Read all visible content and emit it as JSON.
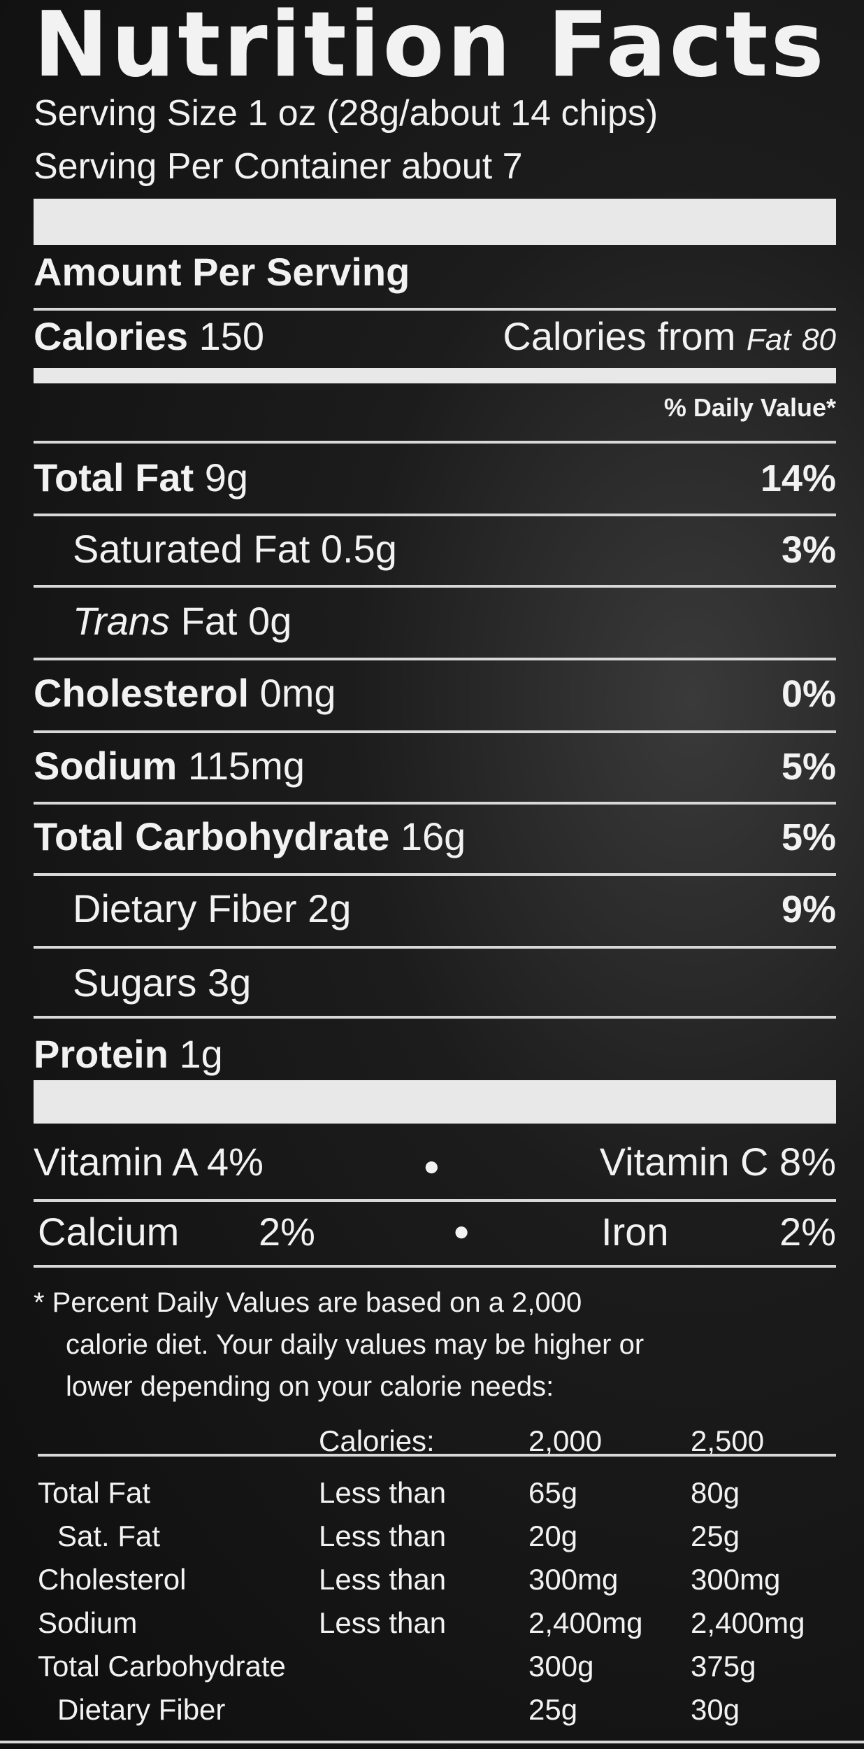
{
  "title": "Nutrition Facts",
  "serving_size": "Serving Size 1 oz (28g/about 14 chips)",
  "servings_per_container": "Serving Per Container about 7",
  "amount_per_serving": "Amount Per Serving",
  "calories": {
    "label": "Calories",
    "value": "150",
    "from_fat_label": "Calories from",
    "from_fat_label2": "Fat",
    "from_fat_value": "80"
  },
  "daily_value_header": "% Daily Value*",
  "nutrients": [
    {
      "label": "Total Fat",
      "amount": "9g",
      "dv": "14%",
      "bold": true
    },
    {
      "label": "Saturated Fat",
      "amount": "0.5g",
      "dv": "3%",
      "bold": false
    },
    {
      "label": "Trans",
      "label2": "Fat",
      "amount": "0g",
      "dv": "",
      "bold": false
    },
    {
      "label": "Cholesterol",
      "amount": "0mg",
      "dv": "0%",
      "bold": true
    },
    {
      "label": "Sodium",
      "amount": "115mg",
      "dv": "5%",
      "bold": true
    },
    {
      "label": "Total Carbohydrate",
      "amount": "16g",
      "dv": "5%",
      "bold": true
    },
    {
      "label": "Dietary Fiber",
      "amount": "2g",
      "dv": "9%",
      "bold": false
    },
    {
      "label": "Sugars",
      "amount": "3g",
      "dv": "",
      "bold": false
    },
    {
      "label": "Protein",
      "amount": "1g",
      "dv": "",
      "bold": true
    }
  ],
  "vitamins": [
    {
      "left": "Vitamin A 4%",
      "right": "Vitamin C 8%"
    },
    {
      "left_label": "Calcium",
      "left_value": "2%",
      "right_label": "Iron",
      "right_value": "2%"
    }
  ],
  "footnote": [
    "* Percent Daily Values are based on a 2,000",
    "calorie diet. Your daily values may be higher or",
    "lower depending on your calorie needs:"
  ],
  "reference_table": {
    "header": [
      "",
      "Calories:",
      "2,000",
      "2,500"
    ],
    "rows": [
      [
        "Total Fat",
        "Less than",
        "65g",
        "80g"
      ],
      [
        "Sat. Fat",
        "Less than",
        "20g",
        "25g"
      ],
      [
        "Cholesterol",
        "Less than",
        "300mg",
        "300mg"
      ],
      [
        "Sodium",
        "Less than",
        "2,400mg",
        "2,400mg"
      ],
      [
        "Total Carbohydrate",
        "",
        "300g",
        "375g"
      ],
      [
        "Dietary Fiber",
        "",
        "25g",
        "30g"
      ]
    ]
  }
}
